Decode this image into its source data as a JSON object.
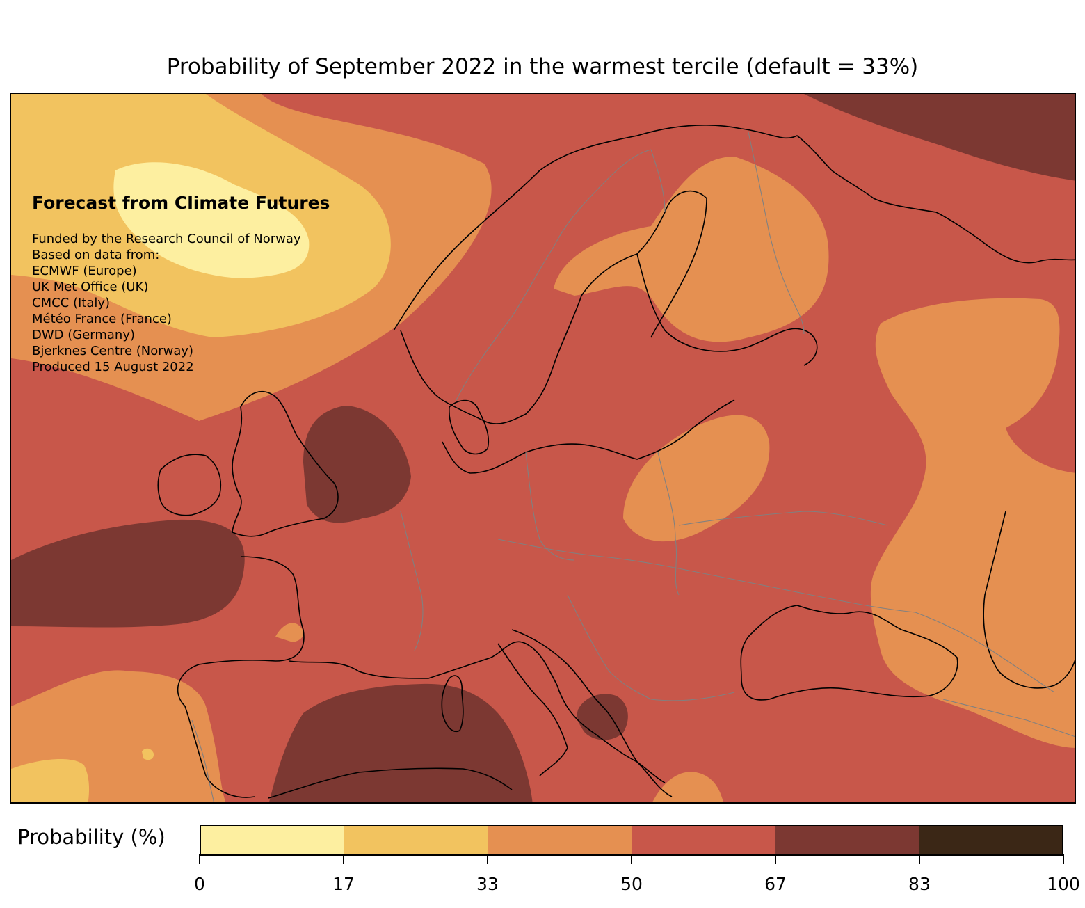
{
  "title": "Probability of September 2022 in the warmest tercile (default = 33%)",
  "info": {
    "heading": "Forecast from Climate Futures",
    "lines": [
      "Funded by the Research Council of Norway",
      "Based on data from:",
      "ECMWF (Europe)",
      "UK Met Office (UK)",
      "CMCC (Italy)",
      "Météo France (France)",
      "DWD (Germany)",
      "Bjerknes Centre (Norway)",
      "Produced 15 August 2022"
    ]
  },
  "colorbar": {
    "label": "Probability (%)",
    "ticks": [
      "0",
      "17",
      "33",
      "50",
      "67",
      "83",
      "100"
    ],
    "bounds": [
      0,
      16.67,
      33.33,
      50,
      66.67,
      83.33,
      100
    ],
    "colors": [
      "#fdefa0",
      "#f2c35f",
      "#e59051",
      "#c8574a",
      "#7c3832",
      "#3b2716"
    ]
  },
  "map": {
    "region": "Europe",
    "background_class_color": "#c8574a",
    "coastline_color": "#000000",
    "border_color": "#808080"
  }
}
